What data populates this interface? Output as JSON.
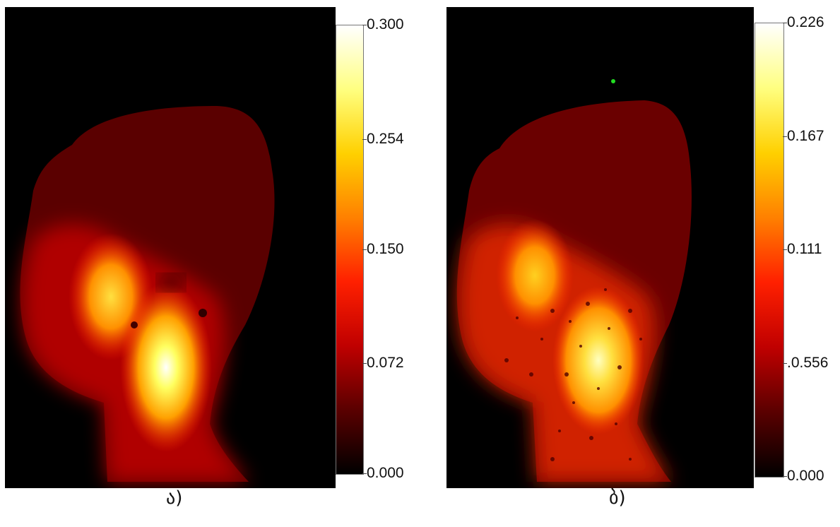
{
  "chart_data": [
    {
      "type": "heatmap",
      "panel_label": "ა)",
      "colorbar": {
        "ticks": [
          "0.300",
          "0.254",
          "0.150",
          "0.072",
          "0.000"
        ],
        "colors": [
          "#000000",
          "#5a0000",
          "#c00000",
          "#ff2000",
          "#ff8000",
          "#ffd000",
          "#ffff80",
          "#ffffff"
        ]
      }
    },
    {
      "type": "heatmap",
      "panel_label": "ბ)",
      "colorbar": {
        "ticks": [
          "0.226",
          "0.167",
          "0.111",
          ".0.556",
          "0.000"
        ],
        "colors": [
          "#000000",
          "#5a0000",
          "#c00000",
          "#ff2000",
          "#ff8000",
          "#ffd000",
          "#ffff80",
          "#ffffff"
        ]
      }
    }
  ]
}
